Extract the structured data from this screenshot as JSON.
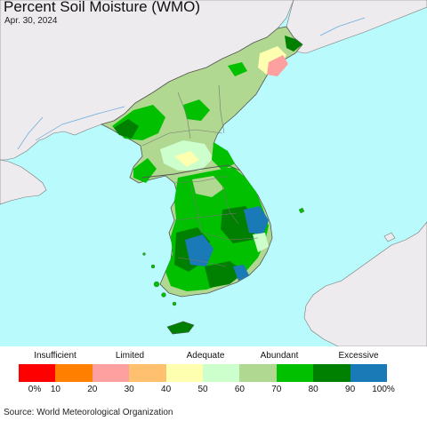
{
  "title": "Percent Soil Moisture (WMO)",
  "date": "Apr. 30, 2024",
  "legend": {
    "categories": [
      {
        "label": "Insufficient",
        "center_pct": 10
      },
      {
        "label": "Limited",
        "center_pct": 30
      },
      {
        "label": "Adequate",
        "center_pct": 50
      },
      {
        "label": "Abundant",
        "center_pct": 70
      },
      {
        "label": "Excessive",
        "center_pct": 90
      }
    ],
    "bins": [
      {
        "range": "0-10",
        "color": "#ff0000"
      },
      {
        "range": "10-20",
        "color": "#ff8000"
      },
      {
        "range": "20-30",
        "color": "#ffa0a0"
      },
      {
        "range": "30-40",
        "color": "#ffc070"
      },
      {
        "range": "40-50",
        "color": "#ffffb0"
      },
      {
        "range": "50-60",
        "color": "#ccffcc"
      },
      {
        "range": "60-70",
        "color": "#b0d890"
      },
      {
        "range": "70-80",
        "color": "#00c000"
      },
      {
        "range": "80-90",
        "color": "#008000"
      },
      {
        "range": "90-100",
        "color": "#1a7ab8"
      }
    ],
    "ticks": [
      "0%",
      "10",
      "20",
      "30",
      "40",
      "50",
      "60",
      "70",
      "80",
      "90",
      "100%"
    ]
  },
  "map_colors": {
    "ocean": "#b9fbfd",
    "land_outside": "#eeebee",
    "border": "#777777"
  },
  "source": "Source: World Meteorological Organization"
}
